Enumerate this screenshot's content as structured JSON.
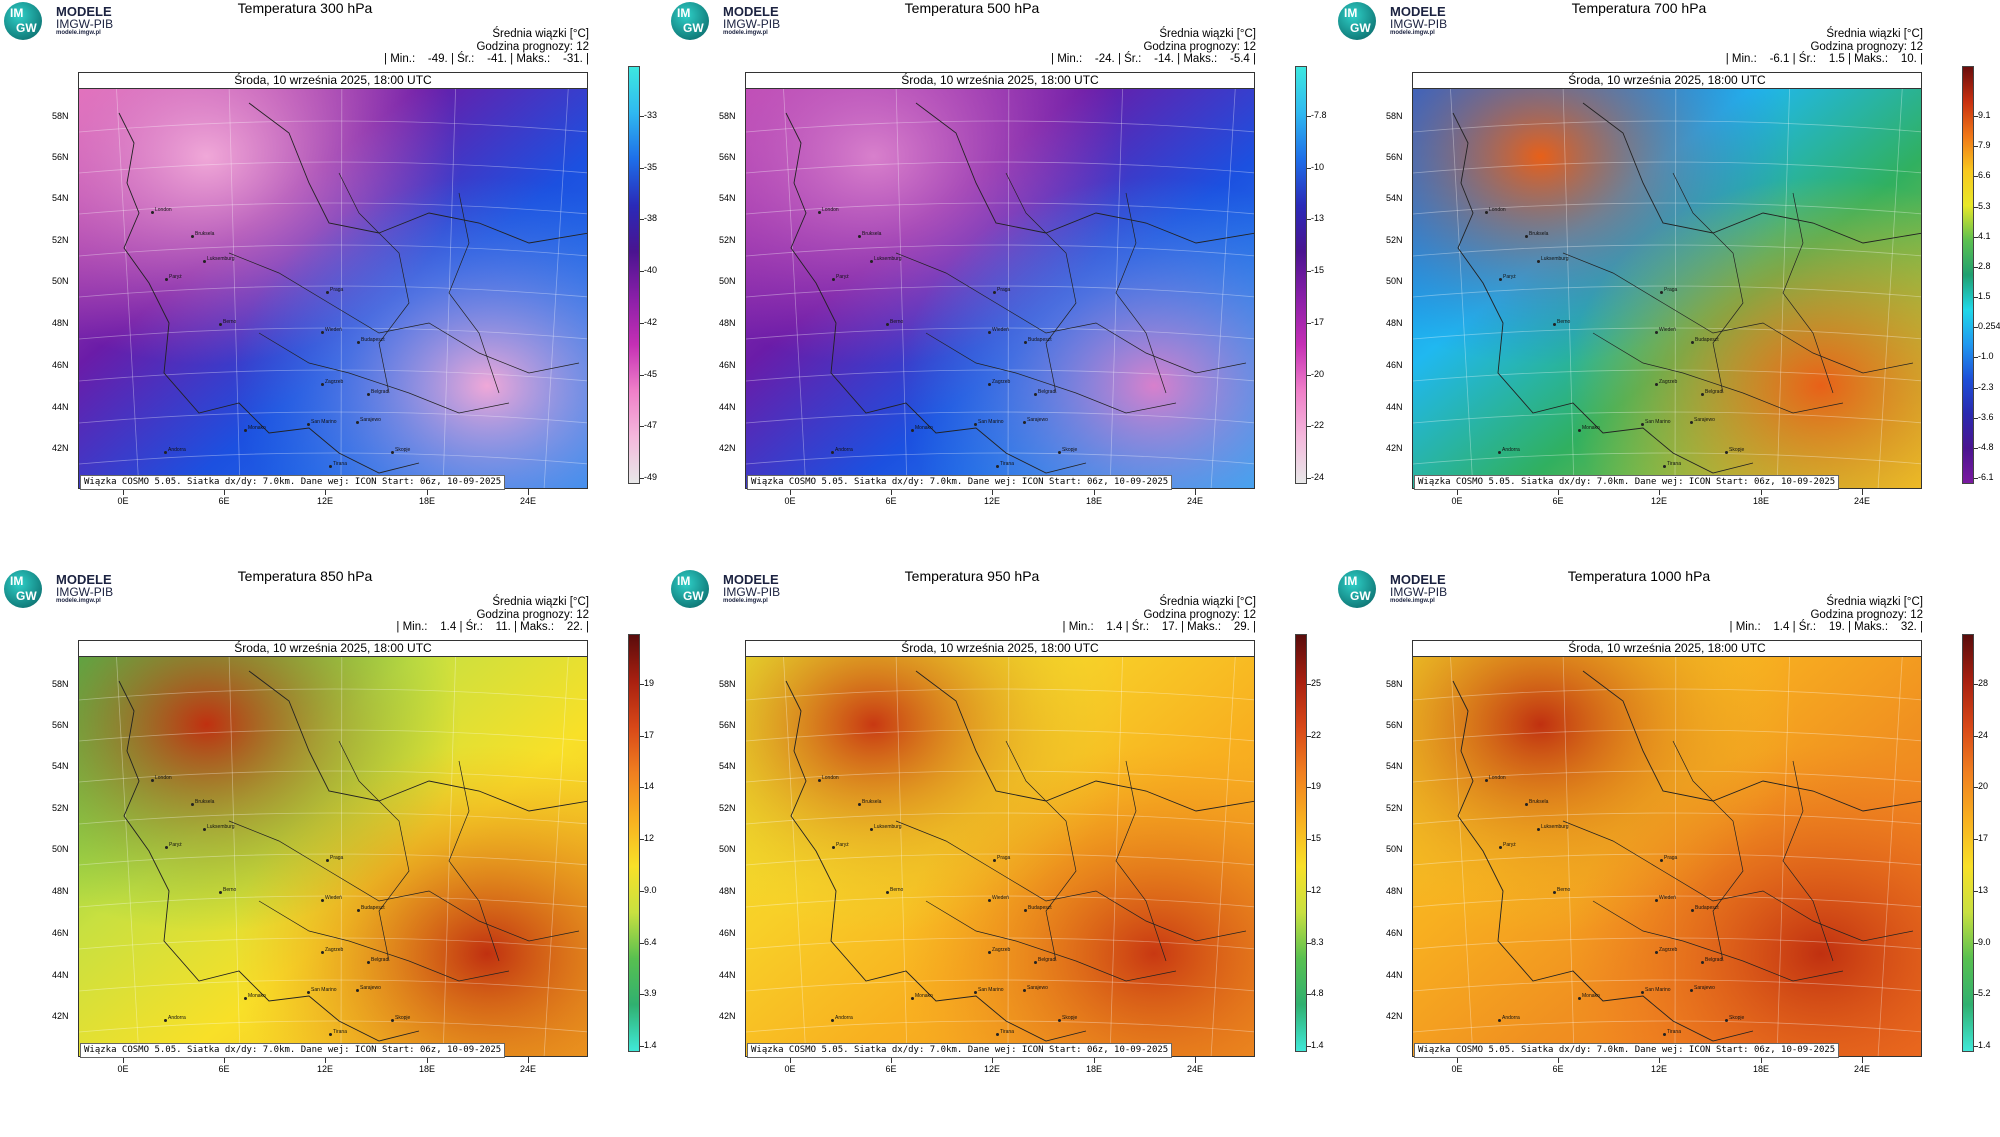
{
  "logo": {
    "mark_top": "IM",
    "mark_bottom": "GW",
    "line1": "MODELE",
    "line2": "IMGW-PIB",
    "line3": "modele.imgw.pl"
  },
  "common": {
    "date": "Środa, 10 września 2025, 18:00 UTC",
    "info_title": "Średnia wiązki [°C]",
    "forecast_hour": "Godzina prognozy: 12",
    "footer": "Wiązka COSMO 5.05. Siatka dx/dy: 7.0km. Dane wej: ICON Start: 06z, 10-09-2025",
    "lat_labels": [
      "58N",
      "56N",
      "54N",
      "52N",
      "50N",
      "48N",
      "46N",
      "44N",
      "42N"
    ],
    "lon_labels": [
      "0E",
      "6E",
      "12E",
      "18E",
      "24E"
    ],
    "cities": [
      "London",
      "Bruksela",
      "Paryż",
      "Luksemburg",
      "Berno",
      "Praga",
      "Wiedeń",
      "Budapeszt",
      "Zagrzeb",
      "Belgrad",
      "San Marino",
      "Sarajewo",
      "Skopje",
      "Monako",
      "Andorra",
      "Tirana"
    ]
  },
  "panels": [
    {
      "title": "Temperatura 300 hPa",
      "stats": "| Min.:    -49. | Śr.:    -41. | Maks.:    -31. |",
      "colorbar_labels": [
        "-33",
        "-35",
        "-38",
        "-40",
        "-42",
        "-45",
        "-47",
        "-49"
      ],
      "colorbar_colors": [
        "#3de8e0",
        "#2fb8f0",
        "#1e6ee8",
        "#2a2ab8",
        "#4a1490",
        "#8a1fa8",
        "#c42fb4",
        "#ef7fc8",
        "#f4b8dc",
        "#e8e8e8"
      ],
      "map_colors": {
        "a": "#e46ab8",
        "b": "#6a1ca8",
        "c": "#1c50e0",
        "d": "#2b8cf0",
        "e": "#f0a8d8"
      }
    },
    {
      "title": "Temperatura 500 hPa",
      "stats": "| Min.:    -24. | Śr.:    -14. | Maks.:    -5.4 |",
      "colorbar_labels": [
        "-7.8",
        "-10",
        "-13",
        "-15",
        "-17",
        "-20",
        "-22",
        "-24"
      ],
      "colorbar_colors": [
        "#3de8e0",
        "#2fb8f0",
        "#1e6ee8",
        "#2a2ab8",
        "#4a1490",
        "#8a1fa8",
        "#c42fb4",
        "#ef7fc8",
        "#f4b8dc",
        "#e8e8e8"
      ],
      "map_colors": {
        "a": "#c048b4",
        "b": "#6a1ca8",
        "c": "#1c50e0",
        "d": "#30a8f4",
        "e": "#d880cc"
      }
    },
    {
      "title": "Temperatura 700 hPa",
      "stats": "| Min.:    -6.1 | Śr.:    1.5 | Maks.:    10. |",
      "colorbar_labels": [
        "9.1",
        "7.9",
        "6.6",
        "5.3",
        "4.1",
        "2.8",
        "1.5",
        "0.254",
        "-1.0",
        "-2.3",
        "-3.6",
        "-4.8",
        "-6.1"
      ],
      "colorbar_colors": [
        "#6a0c0c",
        "#c83010",
        "#f07818",
        "#f8c820",
        "#e8e828",
        "#5cc050",
        "#20a070",
        "#20d8e8",
        "#2098f0",
        "#1e50d8",
        "#2a2ab0",
        "#4a1490",
        "#7a1aa0"
      ],
      "map_colors": {
        "a": "#2060d8",
        "b": "#20b8f0",
        "c": "#30b060",
        "d": "#f0c828",
        "e": "#e86018"
      }
    },
    {
      "title": "Temperatura 850 hPa",
      "stats": "| Min.:    1.4 | Śr.:    11. | Maks.:    22. |",
      "colorbar_labels": [
        "19",
        "17",
        "14",
        "12",
        "9.0",
        "6.4",
        "3.9",
        "1.4"
      ],
      "colorbar_colors": [
        "#5a0c0c",
        "#a82010",
        "#d84818",
        "#f08020",
        "#f8b020",
        "#f8e028",
        "#c8e040",
        "#58c050",
        "#30b070",
        "#40e8d8"
      ],
      "map_colors": {
        "a": "#48b84c",
        "b": "#c8e040",
        "c": "#f8e028",
        "d": "#f0a020",
        "e": "#c03010"
      }
    },
    {
      "title": "Temperatura 950 hPa",
      "stats": "| Min.:    1.4 | Śr.:    17. | Maks.:    29. |",
      "colorbar_labels": [
        "25",
        "22",
        "19",
        "15",
        "12",
        "8.3",
        "4.8",
        "1.4"
      ],
      "colorbar_colors": [
        "#5a0c0c",
        "#a82010",
        "#d84818",
        "#f08020",
        "#f8b020",
        "#f8e028",
        "#c8e040",
        "#58c050",
        "#30b070",
        "#40e8d8"
      ],
      "map_colors": {
        "a": "#e8e830",
        "b": "#f8d028",
        "c": "#f8b020",
        "d": "#f09020",
        "e": "#c83812"
      }
    },
    {
      "title": "Temperatura 1000 hPa",
      "stats": "| Min.:    1.4 | Śr.:    19. | Maks.:    32. |",
      "colorbar_labels": [
        "28",
        "24",
        "20",
        "17",
        "13",
        "9.0",
        "5.2",
        "1.4"
      ],
      "colorbar_colors": [
        "#5a0c0c",
        "#a82010",
        "#d84818",
        "#f08020",
        "#f8b020",
        "#f8e028",
        "#c8e040",
        "#58c050",
        "#30b070",
        "#40e8d8"
      ],
      "map_colors": {
        "a": "#f0d028",
        "b": "#f8b020",
        "c": "#f09020",
        "d": "#f07020",
        "e": "#c03010"
      }
    }
  ]
}
